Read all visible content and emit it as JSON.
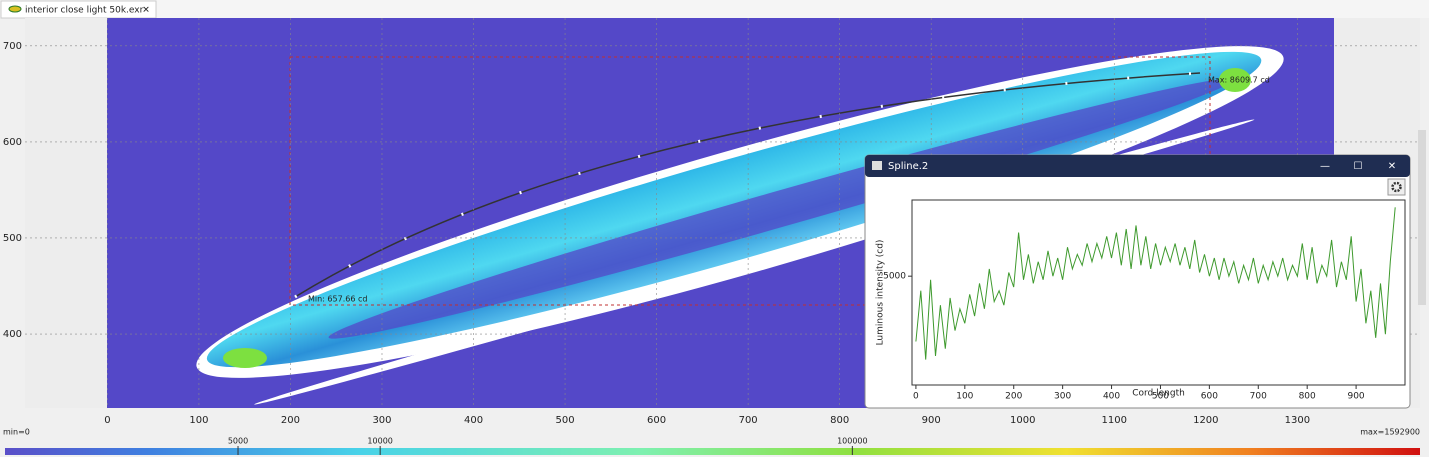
{
  "tab": {
    "title": "interior close light 50k.exr",
    "close": "✕"
  },
  "viewer": {
    "xlim": [
      -90,
      1434
    ],
    "xticks": [
      0,
      100,
      200,
      300,
      400,
      500,
      600,
      700,
      800,
      900,
      1000,
      1100,
      1200,
      1300
    ],
    "ylim": [
      323,
      729
    ],
    "yticks": [
      700,
      600,
      500,
      400
    ],
    "annotations": {
      "min": "Min: 657.66 cd",
      "max": "Max: 8609.7 cd"
    }
  },
  "colorbar": {
    "min_label": "min=0",
    "max_label": "max=1592900",
    "clim": [
      1605,
      1592900
    ],
    "log": true,
    "ticks": [
      5000,
      10000,
      100000
    ]
  },
  "window": {
    "title": "Spline.2",
    "minimize": "—",
    "maximize": "☐",
    "close": "✕",
    "chart_data": {
      "type": "line",
      "xlabel": "Cord length",
      "ylabel": "Luminous intensity (cd)",
      "xlim": [
        -8,
        1000
      ],
      "xticks": [
        0,
        100,
        200,
        300,
        400,
        500,
        600,
        700,
        800,
        900
      ],
      "ylim": [
        2000,
        7100
      ],
      "yticks": [
        5000
      ],
      "grid": false,
      "series": [
        {
          "name": "Spline.2",
          "color": "#3f9a2e",
          "x": [
            0,
            10,
            20,
            30,
            40,
            50,
            60,
            70,
            80,
            90,
            100,
            110,
            120,
            130,
            140,
            150,
            160,
            170,
            180,
            190,
            200,
            210,
            220,
            230,
            240,
            250,
            260,
            270,
            280,
            290,
            300,
            310,
            320,
            330,
            340,
            350,
            360,
            370,
            380,
            390,
            400,
            410,
            420,
            430,
            440,
            450,
            460,
            470,
            480,
            490,
            500,
            510,
            520,
            530,
            540,
            550,
            560,
            570,
            580,
            590,
            600,
            610,
            620,
            630,
            640,
            650,
            660,
            670,
            680,
            690,
            700,
            710,
            720,
            730,
            740,
            750,
            760,
            770,
            780,
            790,
            800,
            810,
            820,
            830,
            840,
            850,
            860,
            870,
            880,
            890,
            900,
            910,
            920,
            930,
            940,
            950,
            960,
            970,
            980
          ],
          "values": [
            3200,
            4600,
            2700,
            4900,
            2800,
            4200,
            3000,
            4400,
            3500,
            4100,
            3700,
            4500,
            3900,
            4800,
            4100,
            5200,
            4300,
            4600,
            4200,
            5100,
            4700,
            6200,
            4900,
            5600,
            4800,
            5400,
            4900,
            5700,
            5000,
            5500,
            4900,
            5800,
            5200,
            5600,
            5300,
            5900,
            5400,
            5900,
            5500,
            6100,
            5500,
            6200,
            5300,
            6300,
            5200,
            6400,
            5300,
            6100,
            5200,
            5900,
            5300,
            5800,
            5400,
            5900,
            5300,
            5800,
            5200,
            6000,
            5100,
            5600,
            5000,
            5500,
            4900,
            5500,
            5000,
            5400,
            4800,
            5300,
            4900,
            5500,
            4800,
            5300,
            4900,
            5400,
            5000,
            5500,
            4900,
            5300,
            5000,
            5900,
            4900,
            5800,
            4800,
            5300,
            5000,
            6000,
            4700,
            5400,
            4900,
            6100,
            4300,
            5200,
            3700,
            4600,
            3300,
            4800,
            3400,
            5400,
            6900
          ]
        }
      ]
    }
  }
}
